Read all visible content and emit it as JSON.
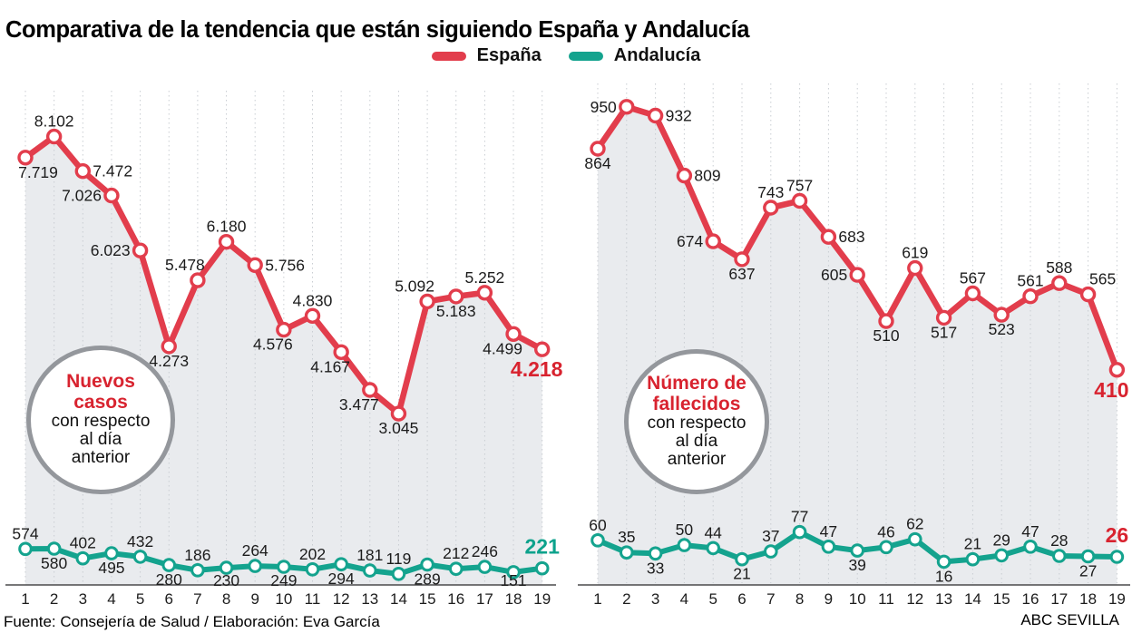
{
  "title": "Comparativa de la tendencia que están siguiendo España y Andalucía",
  "legend": [
    {
      "label": "España",
      "color": "#e23d4c"
    },
    {
      "label": "Andalucía",
      "color": "#14a38e"
    }
  ],
  "colors": {
    "spain": "#e23d4c",
    "andalucia": "#14a38e",
    "fill": "#e9ebee",
    "grid": "#c9cdd2",
    "axis": "#4a4a4c",
    "text": "#1c1c1c",
    "highlight_red": "#d8232f",
    "highlight_teal": "#0ca28c",
    "circle_border": "#94979c"
  },
  "footer": {
    "source": "Fuente: Consejería de Salud / Elaboración: Eva García",
    "credit": "ABC SEVILLA"
  },
  "chart_data": [
    {
      "type": "line",
      "name": "Nuevos casos",
      "annotation": {
        "highlight": "Nuevos casos",
        "rest": "con respecto al día anterior"
      },
      "x_ticks": [
        "1",
        "2",
        "3",
        "4",
        "5",
        "6",
        "7",
        "8",
        "9",
        "10",
        "11",
        "12",
        "13",
        "14",
        "15",
        "16",
        "17",
        "18",
        "19"
      ],
      "series": [
        {
          "name": "España",
          "color": "#e23d4c",
          "last_label_color": "#d8232f",
          "values": [
            7719,
            8102,
            7472,
            7026,
            6023,
            4273,
            5478,
            6180,
            5756,
            4576,
            4830,
            4167,
            3477,
            3045,
            5092,
            5183,
            5252,
            4499,
            4218
          ],
          "labels": [
            "7.719",
            "8.102",
            "7.472",
            "7.026",
            "6.023",
            "4.273",
            "5.478",
            "6.180",
            "5.756",
            "4.576",
            "4.830",
            "4.167",
            "3.477",
            "3.045",
            "5.092",
            "5.183",
            "5.252",
            "4.499",
            "4.218"
          ],
          "label_pos": [
            "br",
            "a",
            "r",
            "l",
            "l",
            "b",
            "al",
            "a",
            "r",
            "bl",
            "a",
            "bl",
            "bl",
            "b",
            "al",
            "b",
            "a",
            "bl",
            "b"
          ]
        },
        {
          "name": "Andalucía",
          "color": "#14a38e",
          "last_label_color": "#0ca28c",
          "values": [
            574,
            580,
            402,
            495,
            432,
            280,
            186,
            230,
            264,
            249,
            202,
            294,
            181,
            119,
            289,
            212,
            246,
            151,
            221
          ],
          "labels": [
            "574",
            "580",
            "402",
            "495",
            "432",
            "280",
            "186",
            "230",
            "264",
            "249",
            "202",
            "294",
            "181",
            "119",
            "289",
            "212",
            "246",
            "151",
            "221"
          ],
          "label_pos": [
            "a",
            "b",
            "a",
            "b",
            "a",
            "b",
            "a",
            "b",
            "a",
            "b",
            "a",
            "b",
            "a",
            "a",
            "b",
            "a",
            "a",
            "b",
            "a"
          ]
        }
      ]
    },
    {
      "type": "line",
      "name": "Número de fallecidos",
      "annotation": {
        "highlight": "Número de fallecidos",
        "rest": "con respecto al día anterior"
      },
      "x_ticks": [
        "1",
        "2",
        "3",
        "4",
        "5",
        "6",
        "7",
        "8",
        "9",
        "10",
        "11",
        "12",
        "13",
        "14",
        "15",
        "16",
        "17",
        "18",
        "19"
      ],
      "series": [
        {
          "name": "España",
          "color": "#e23d4c",
          "last_label_color": "#d8232f",
          "values": [
            864,
            950,
            932,
            809,
            674,
            637,
            743,
            757,
            683,
            605,
            510,
            619,
            517,
            567,
            523,
            561,
            588,
            565,
            410
          ],
          "labels": [
            "864",
            "950",
            "932",
            "809",
            "674",
            "637",
            "743",
            "757",
            "683",
            "605",
            "510",
            "619",
            "517",
            "567",
            "523",
            "561",
            "588",
            "565",
            "410"
          ],
          "label_pos": [
            "b",
            "l",
            "r",
            "r",
            "l",
            "b",
            "a",
            "a",
            "r",
            "l",
            "b",
            "a",
            "b",
            "a",
            "b",
            "a",
            "a",
            "ar",
            "b"
          ]
        },
        {
          "name": "Andalucía",
          "color": "#14a38e",
          "last_label_color": "#d8232f",
          "values": [
            60,
            35,
            33,
            50,
            44,
            21,
            37,
            77,
            47,
            39,
            46,
            62,
            16,
            21,
            29,
            47,
            28,
            27,
            26
          ],
          "labels": [
            "60",
            "35",
            "33",
            "50",
            "44",
            "21",
            "37",
            "77",
            "47",
            "39",
            "46",
            "62",
            "16",
            "21",
            "29",
            "47",
            "28",
            "27",
            "26"
          ],
          "label_pos": [
            "a",
            "a",
            "b",
            "a",
            "a",
            "b",
            "a",
            "a",
            "a",
            "b",
            "a",
            "a",
            "b",
            "a",
            "a",
            "a",
            "a",
            "b",
            "a"
          ]
        }
      ]
    }
  ]
}
